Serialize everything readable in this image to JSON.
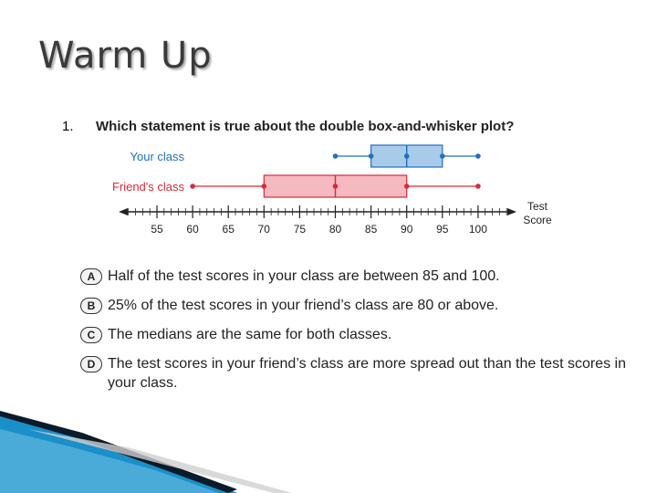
{
  "slide": {
    "title": "Warm Up",
    "question_number": "1.",
    "question": "Which statement is true about the double box-and-whisker plot?"
  },
  "chart_data": {
    "type": "box",
    "axis": {
      "ticks": [
        55,
        60,
        65,
        70,
        75,
        80,
        85,
        90,
        95,
        100
      ],
      "label_line1": "Test",
      "label_line2": "Score",
      "range": [
        50,
        105
      ]
    },
    "series": [
      {
        "name": "Your class",
        "min": 80,
        "q1": 85,
        "median": 90,
        "q3": 95,
        "max": 100,
        "color": "#1f6fbf",
        "fill": "#a9cbea"
      },
      {
        "name": "Friend's class",
        "min": 60,
        "q1": 70,
        "median": 80,
        "q3": 90,
        "max": 100,
        "color": "#d92a38",
        "fill": "#f5b9c0"
      }
    ]
  },
  "answers": [
    {
      "letter": "A",
      "text": "Half of the test scores in your class are between 85 and 100."
    },
    {
      "letter": "B",
      "text": "25% of the test scores in your friend’s class are 80 or above."
    },
    {
      "letter": "C",
      "text": "The medians are the same for both classes."
    },
    {
      "letter": "D",
      "text": "The test scores in your friend’s class are more spread out than the test scores in your class."
    }
  ],
  "theme": {
    "accent_blue": "#1a8fc9",
    "accent_dark": "#0b1b2a"
  }
}
